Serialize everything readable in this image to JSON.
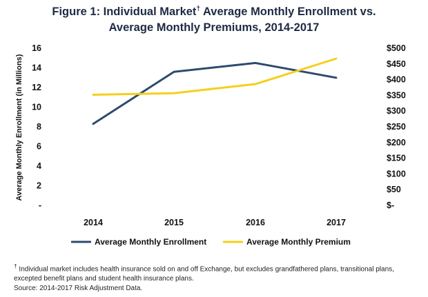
{
  "chart_data": {
    "type": "line",
    "title_line1": "Figure 1: Individual Market",
    "title_dagger": "†",
    "title_line1_rest": " Average Monthly Enrollment vs.",
    "title_line2": "Average Monthly Premiums, 2014-2017",
    "ylabel_left": "Average Monthly Enrollment (in Millions)",
    "categories": [
      "2014",
      "2015",
      "2016",
      "2017"
    ],
    "y_left": {
      "ticks": [
        "16",
        "14",
        "12",
        "10",
        "8",
        "6",
        "4",
        "2",
        "-"
      ],
      "ylim": [
        0,
        16
      ]
    },
    "y_right": {
      "ticks": [
        "$500",
        "$450",
        "$400",
        "$350",
        "$300",
        "$250",
        "$200",
        "$150",
        "$100",
        "$50",
        "$-"
      ],
      "ylim": [
        0,
        500
      ]
    },
    "series": [
      {
        "name": "Average Monthly Enrollment",
        "axis": "left",
        "color": "#2e4a6e",
        "values": [
          8.3,
          13.6,
          14.5,
          13.0
        ]
      },
      {
        "name": "Average Monthly Premium",
        "axis": "right",
        "color": "#f5cf1a",
        "values": [
          352,
          357,
          386,
          467
        ]
      }
    ],
    "legend_placement": "bottom",
    "grid": false
  },
  "footnote": {
    "dagger": "†",
    "text": "Individual market includes health insurance sold on and off Exchange, but excludes grandfathered plans, transitional plans, excepted benefit plans and student health insurance plans.",
    "source": "Source: 2014-2017 Risk Adjustment Data."
  }
}
